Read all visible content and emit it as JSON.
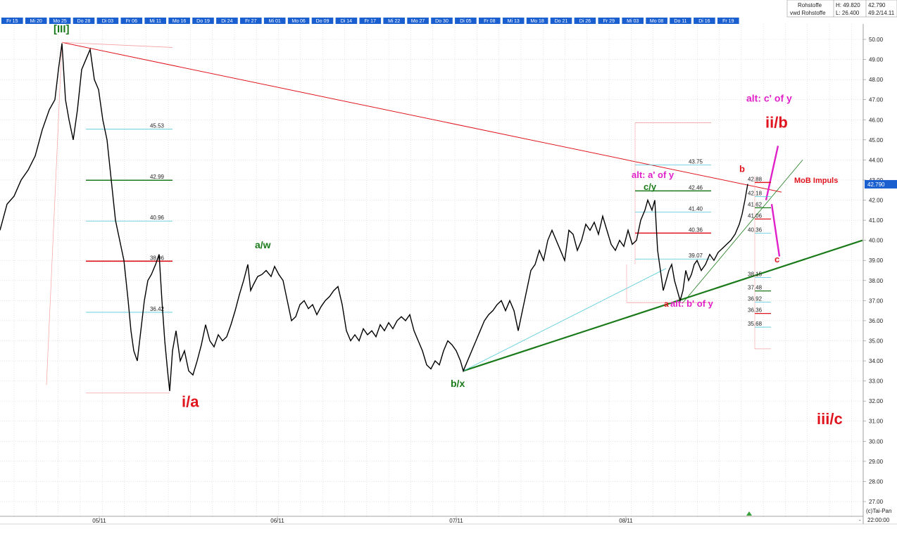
{
  "header": {
    "name": "Rohstoffe",
    "sub": "vwd Rohstoffe",
    "high_label": "H: 49.820",
    "low_label": "L: 26.400",
    "last_price": "42.790",
    "info": "49.2/14.11"
  },
  "footer": {
    "source": "(c)Tai-Pan",
    "time": "22:00:00",
    "dash": "-"
  },
  "colors": {
    "price": "#000000",
    "red": "#e0141e",
    "green": "#1a7a1a",
    "magenta": "#e020c8",
    "cyan": "#4cc8d8",
    "pink": "#f4a0a0",
    "tab": "#1a5fd0",
    "price_box": "#1a5fd0"
  },
  "chart_data": {
    "type": "line",
    "title": "",
    "ylim": [
      26.5,
      50.5
    ],
    "x_range": [
      0,
      1226
    ],
    "y_ticks": [
      "50.00",
      "49.00",
      "48.00",
      "47.00",
      "46.00",
      "45.00",
      "44.00",
      "43.00",
      "42.00",
      "41.00",
      "40.00",
      "39.00",
      "38.00",
      "37.00",
      "36.00",
      "35.00",
      "34.00",
      "33.00",
      "32.00",
      "31.00",
      "30.00",
      "29.00",
      "28.00",
      "27.00"
    ],
    "date_tabs": [
      "Fr 15",
      "Mi 20",
      "Mo 25",
      "Do 28",
      "Di 03",
      "Fr 06",
      "Mi 11",
      "Mo 16",
      "Do 19",
      "Di 24",
      "Fr 27",
      "Mi 01",
      "Mo 06",
      "Do 09",
      "Di 14",
      "Fr 17",
      "Mi 22",
      "Mo 27",
      "Do 30",
      "Di 05",
      "Fr 08",
      "Mi 13",
      "Mo 18",
      "Do 21",
      "Di 26",
      "Fr 29",
      "Mi 03",
      "Mo 08",
      "Do 11",
      "Di 16",
      "Fr 19"
    ],
    "x_labels": [
      {
        "label": "05/11",
        "x": 141
      },
      {
        "label": "06/11",
        "x": 394
      },
      {
        "label": "07/11",
        "x": 648
      },
      {
        "label": "08/11",
        "x": 889
      }
    ],
    "price_series": [
      {
        "x": 0,
        "y": 40.5
      },
      {
        "x": 10,
        "y": 41.8
      },
      {
        "x": 20,
        "y": 42.2
      },
      {
        "x": 30,
        "y": 43.0
      },
      {
        "x": 40,
        "y": 43.5
      },
      {
        "x": 50,
        "y": 44.2
      },
      {
        "x": 60,
        "y": 45.5
      },
      {
        "x": 70,
        "y": 46.5
      },
      {
        "x": 78,
        "y": 47.0
      },
      {
        "x": 83,
        "y": 48.5
      },
      {
        "x": 88,
        "y": 49.8
      },
      {
        "x": 93,
        "y": 47.0
      },
      {
        "x": 98,
        "y": 46.0
      },
      {
        "x": 104,
        "y": 45.0
      },
      {
        "x": 110,
        "y": 46.5
      },
      {
        "x": 116,
        "y": 48.5
      },
      {
        "x": 122,
        "y": 49.0
      },
      {
        "x": 128,
        "y": 49.5
      },
      {
        "x": 134,
        "y": 48.0
      },
      {
        "x": 140,
        "y": 47.5
      },
      {
        "x": 146,
        "y": 46.0
      },
      {
        "x": 152,
        "y": 45.0
      },
      {
        "x": 158,
        "y": 43.0
      },
      {
        "x": 164,
        "y": 41.0
      },
      {
        "x": 170,
        "y": 40.0
      },
      {
        "x": 176,
        "y": 39.0
      },
      {
        "x": 182,
        "y": 37.0
      },
      {
        "x": 186,
        "y": 35.5
      },
      {
        "x": 190,
        "y": 34.5
      },
      {
        "x": 195,
        "y": 34.0
      },
      {
        "x": 200,
        "y": 35.5
      },
      {
        "x": 205,
        "y": 37.0
      },
      {
        "x": 210,
        "y": 38.0
      },
      {
        "x": 215,
        "y": 38.3
      },
      {
        "x": 221,
        "y": 38.8
      },
      {
        "x": 226,
        "y": 39.3
      },
      {
        "x": 230,
        "y": 37.0
      },
      {
        "x": 234,
        "y": 35.0
      },
      {
        "x": 238,
        "y": 33.5
      },
      {
        "x": 241,
        "y": 32.5
      },
      {
        "x": 245,
        "y": 34.5
      },
      {
        "x": 250,
        "y": 35.5
      },
      {
        "x": 256,
        "y": 34.0
      },
      {
        "x": 262,
        "y": 34.5
      },
      {
        "x": 268,
        "y": 33.5
      },
      {
        "x": 274,
        "y": 33.3
      },
      {
        "x": 280,
        "y": 34.0
      },
      {
        "x": 286,
        "y": 34.8
      },
      {
        "x": 292,
        "y": 35.8
      },
      {
        "x": 298,
        "y": 35.0
      },
      {
        "x": 304,
        "y": 34.7
      },
      {
        "x": 310,
        "y": 35.3
      },
      {
        "x": 316,
        "y": 35.0
      },
      {
        "x": 322,
        "y": 35.2
      },
      {
        "x": 328,
        "y": 35.8
      },
      {
        "x": 334,
        "y": 36.5
      },
      {
        "x": 340,
        "y": 37.3
      },
      {
        "x": 346,
        "y": 38.0
      },
      {
        "x": 352,
        "y": 38.8
      },
      {
        "x": 356,
        "y": 37.5
      },
      {
        "x": 360,
        "y": 37.8
      },
      {
        "x": 366,
        "y": 38.2
      },
      {
        "x": 372,
        "y": 38.3
      },
      {
        "x": 378,
        "y": 38.5
      },
      {
        "x": 385,
        "y": 38.2
      },
      {
        "x": 390,
        "y": 38.7
      },
      {
        "x": 396,
        "y": 38.3
      },
      {
        "x": 402,
        "y": 38.0
      },
      {
        "x": 408,
        "y": 37.0
      },
      {
        "x": 414,
        "y": 36.0
      },
      {
        "x": 420,
        "y": 36.2
      },
      {
        "x": 426,
        "y": 36.8
      },
      {
        "x": 432,
        "y": 37.0
      },
      {
        "x": 438,
        "y": 36.6
      },
      {
        "x": 444,
        "y": 36.8
      },
      {
        "x": 450,
        "y": 36.3
      },
      {
        "x": 456,
        "y": 36.7
      },
      {
        "x": 462,
        "y": 37.0
      },
      {
        "x": 468,
        "y": 37.2
      },
      {
        "x": 474,
        "y": 37.5
      },
      {
        "x": 480,
        "y": 37.7
      },
      {
        "x": 486,
        "y": 36.8
      },
      {
        "x": 492,
        "y": 35.5
      },
      {
        "x": 498,
        "y": 35.0
      },
      {
        "x": 504,
        "y": 35.3
      },
      {
        "x": 510,
        "y": 35.0
      },
      {
        "x": 516,
        "y": 35.6
      },
      {
        "x": 522,
        "y": 35.3
      },
      {
        "x": 528,
        "y": 35.5
      },
      {
        "x": 534,
        "y": 35.2
      },
      {
        "x": 540,
        "y": 35.8
      },
      {
        "x": 546,
        "y": 35.5
      },
      {
        "x": 552,
        "y": 35.9
      },
      {
        "x": 558,
        "y": 35.6
      },
      {
        "x": 564,
        "y": 36.0
      },
      {
        "x": 570,
        "y": 36.2
      },
      {
        "x": 576,
        "y": 36.0
      },
      {
        "x": 582,
        "y": 36.3
      },
      {
        "x": 588,
        "y": 35.5
      },
      {
        "x": 594,
        "y": 35.0
      },
      {
        "x": 600,
        "y": 34.5
      },
      {
        "x": 606,
        "y": 33.8
      },
      {
        "x": 612,
        "y": 33.6
      },
      {
        "x": 618,
        "y": 34.0
      },
      {
        "x": 624,
        "y": 33.8
      },
      {
        "x": 630,
        "y": 34.5
      },
      {
        "x": 636,
        "y": 35.0
      },
      {
        "x": 642,
        "y": 34.8
      },
      {
        "x": 648,
        "y": 34.5
      },
      {
        "x": 654,
        "y": 34.0
      },
      {
        "x": 658,
        "y": 33.5
      },
      {
        "x": 664,
        "y": 34.0
      },
      {
        "x": 670,
        "y": 34.5
      },
      {
        "x": 676,
        "y": 35.0
      },
      {
        "x": 682,
        "y": 35.5
      },
      {
        "x": 688,
        "y": 36.0
      },
      {
        "x": 694,
        "y": 36.3
      },
      {
        "x": 700,
        "y": 36.5
      },
      {
        "x": 706,
        "y": 36.8
      },
      {
        "x": 712,
        "y": 37.0
      },
      {
        "x": 718,
        "y": 36.5
      },
      {
        "x": 724,
        "y": 37.0
      },
      {
        "x": 730,
        "y": 36.5
      },
      {
        "x": 736,
        "y": 35.5
      },
      {
        "x": 742,
        "y": 36.5
      },
      {
        "x": 748,
        "y": 37.5
      },
      {
        "x": 754,
        "y": 38.5
      },
      {
        "x": 760,
        "y": 38.8
      },
      {
        "x": 766,
        "y": 39.5
      },
      {
        "x": 772,
        "y": 39.0
      },
      {
        "x": 778,
        "y": 40.0
      },
      {
        "x": 784,
        "y": 40.5
      },
      {
        "x": 790,
        "y": 40.0
      },
      {
        "x": 796,
        "y": 39.5
      },
      {
        "x": 802,
        "y": 39.0
      },
      {
        "x": 808,
        "y": 40.5
      },
      {
        "x": 814,
        "y": 40.3
      },
      {
        "x": 820,
        "y": 39.5
      },
      {
        "x": 826,
        "y": 40.0
      },
      {
        "x": 832,
        "y": 40.8
      },
      {
        "x": 838,
        "y": 40.5
      },
      {
        "x": 844,
        "y": 40.9
      },
      {
        "x": 850,
        "y": 40.3
      },
      {
        "x": 856,
        "y": 41.2
      },
      {
        "x": 862,
        "y": 40.5
      },
      {
        "x": 868,
        "y": 39.8
      },
      {
        "x": 874,
        "y": 39.5
      },
      {
        "x": 880,
        "y": 40.0
      },
      {
        "x": 886,
        "y": 39.7
      },
      {
        "x": 892,
        "y": 40.5
      },
      {
        "x": 898,
        "y": 39.8
      },
      {
        "x": 904,
        "y": 40.0
      },
      {
        "x": 910,
        "y": 41.0
      },
      {
        "x": 916,
        "y": 41.5
      },
      {
        "x": 920,
        "y": 42.0
      },
      {
        "x": 926,
        "y": 41.5
      },
      {
        "x": 930,
        "y": 42.0
      },
      {
        "x": 934,
        "y": 39.5
      },
      {
        "x": 938,
        "y": 38.5
      },
      {
        "x": 942,
        "y": 37.5
      },
      {
        "x": 946,
        "y": 38.0
      },
      {
        "x": 950,
        "y": 38.5
      },
      {
        "x": 954,
        "y": 38.8
      },
      {
        "x": 958,
        "y": 38.0
      },
      {
        "x": 962,
        "y": 37.5
      },
      {
        "x": 966,
        "y": 37.0
      },
      {
        "x": 970,
        "y": 37.5
      },
      {
        "x": 974,
        "y": 38.5
      },
      {
        "x": 978,
        "y": 38.0
      },
      {
        "x": 982,
        "y": 38.3
      },
      {
        "x": 986,
        "y": 38.8
      },
      {
        "x": 990,
        "y": 39.0
      },
      {
        "x": 996,
        "y": 38.5
      },
      {
        "x": 1002,
        "y": 38.8
      },
      {
        "x": 1008,
        "y": 39.3
      },
      {
        "x": 1014,
        "y": 39.0
      },
      {
        "x": 1020,
        "y": 39.4
      },
      {
        "x": 1026,
        "y": 39.6
      },
      {
        "x": 1032,
        "y": 39.8
      },
      {
        "x": 1038,
        "y": 40.0
      },
      {
        "x": 1044,
        "y": 40.3
      },
      {
        "x": 1050,
        "y": 40.8
      },
      {
        "x": 1054,
        "y": 41.3
      },
      {
        "x": 1058,
        "y": 42.0
      },
      {
        "x": 1062,
        "y": 42.8
      }
    ],
    "fib_levels_left": [
      {
        "label": "45.53",
        "y": 45.53
      },
      {
        "label": "42.99",
        "y": 42.99
      },
      {
        "label": "40.96",
        "y": 40.96
      },
      {
        "label": "38.96",
        "y": 38.96
      },
      {
        "label": "36.42",
        "y": 36.42
      }
    ],
    "fib_levels_right_top": [
      {
        "label": "43.75",
        "y": 43.75
      },
      {
        "label": "42.46",
        "y": 42.46
      },
      {
        "label": "41.40",
        "y": 41.4
      },
      {
        "label": "40.36",
        "y": 40.36
      },
      {
        "label": "39.07",
        "y": 39.07
      }
    ],
    "fib_levels_right": [
      {
        "label": "42.88",
        "y": 42.88
      },
      {
        "label": "42.18",
        "y": 42.18
      },
      {
        "label": "41.62",
        "y": 41.62
      },
      {
        "label": "41.06",
        "y": 41.06
      },
      {
        "label": "40.36",
        "y": 40.36
      },
      {
        "label": "38.15",
        "y": 38.15
      },
      {
        "label": "37.48",
        "y": 37.48
      },
      {
        "label": "36.92",
        "y": 36.92
      },
      {
        "label": "36.36",
        "y": 36.36
      },
      {
        "label": "35.68",
        "y": 35.68
      }
    ],
    "annotations": [
      {
        "text": "[III]",
        "x": 76,
        "y": 50.35,
        "color": "green",
        "size": 15
      },
      {
        "text": "i/a",
        "x": 258,
        "y": 31.7,
        "color": "red",
        "size": 22
      },
      {
        "text": "a/w",
        "x": 362,
        "y": 39.6,
        "color": "green",
        "size": 14
      },
      {
        "text": "b/x",
        "x": 640,
        "y": 32.7,
        "color": "green",
        "size": 14
      },
      {
        "text": "c/y",
        "x": 914,
        "y": 42.5,
        "color": "green",
        "size": 13
      },
      {
        "text": "alt: a' of y",
        "x": 897,
        "y": 43.1,
        "color": "magenta",
        "size": 13
      },
      {
        "text": "a",
        "x": 943,
        "y": 36.7,
        "color": "red",
        "size": 12
      },
      {
        "text": "alt: b' of y",
        "x": 952,
        "y": 36.7,
        "color": "magenta",
        "size": 13
      },
      {
        "text": "b",
        "x": 1050,
        "y": 43.4,
        "color": "red",
        "size": 13
      },
      {
        "text": "alt: c' of y",
        "x": 1060,
        "y": 46.9,
        "color": "magenta",
        "size": 14
      },
      {
        "text": "ii/b",
        "x": 1087,
        "y": 45.6,
        "color": "red",
        "size": 22
      },
      {
        "text": "MoB Impuls",
        "x": 1128,
        "y": 42.85,
        "color": "red",
        "size": 11
      },
      {
        "text": "c",
        "x": 1100,
        "y": 38.9,
        "color": "red",
        "size": 13
      },
      {
        "text": "iii/c",
        "x": 1160,
        "y": 30.85,
        "color": "red",
        "size": 22
      }
    ]
  }
}
